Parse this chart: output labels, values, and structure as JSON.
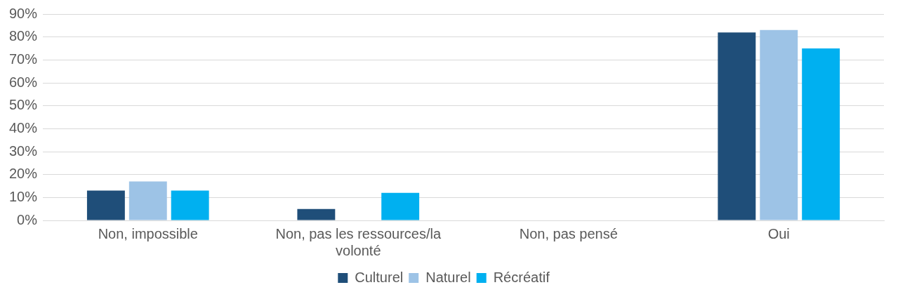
{
  "chart_data": {
    "type": "bar",
    "categories": [
      "Non, impossible",
      "Non, pas les ressources/la volonté",
      "Non, pas pensé",
      "Oui"
    ],
    "series": [
      {
        "name": "Culturel",
        "color": "#1f4e79",
        "values": [
          13,
          5,
          0,
          82
        ]
      },
      {
        "name": "Naturel",
        "color": "#9dc3e6",
        "values": [
          17,
          0,
          0,
          83
        ]
      },
      {
        "name": "Récréatif",
        "color": "#00b0f0",
        "values": [
          13,
          12,
          0,
          75
        ]
      }
    ],
    "ylim": [
      0,
      90
    ],
    "yticks": [
      {
        "value": 0,
        "label": "0%"
      },
      {
        "value": 10,
        "label": "10%"
      },
      {
        "value": 20,
        "label": "20%"
      },
      {
        "value": 30,
        "label": "30%"
      },
      {
        "value": 40,
        "label": "40%"
      },
      {
        "value": 50,
        "label": "50%"
      },
      {
        "value": 60,
        "label": "60%"
      },
      {
        "value": 70,
        "label": "70%"
      },
      {
        "value": 80,
        "label": "80%"
      },
      {
        "value": 90,
        "label": "90%"
      }
    ],
    "grid": "y",
    "legend": "bottom"
  }
}
